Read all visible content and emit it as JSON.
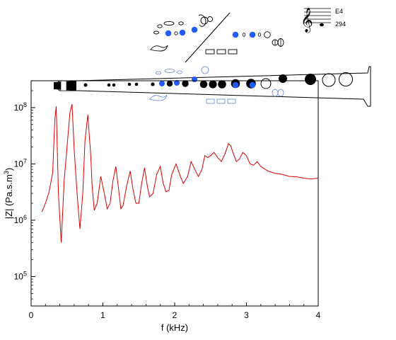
{
  "chart_data": {
    "type": "line",
    "title": "",
    "xlabel": "f (kHz)",
    "ylabel_parts": {
      "base": "|Z| (Pa.s.m",
      "sup": "3",
      "end": ")"
    },
    "xlim": [
      0,
      4
    ],
    "ylim": [
      30000.0,
      300000000.0
    ],
    "yscale": "log",
    "grid": false,
    "xticks": [
      0,
      1,
      2,
      3,
      4
    ],
    "xtick_labels": [
      "0",
      "1",
      "2",
      "3",
      "4"
    ],
    "yticks": [
      100000.0,
      1000000.0,
      10000000.0,
      100000000.0
    ],
    "ytick_labels": [
      {
        "base": "10",
        "exp": "5"
      },
      {
        "base": "10",
        "exp": "6"
      },
      {
        "base": "10",
        "exp": "7"
      },
      {
        "base": "10",
        "exp": "8"
      }
    ],
    "series": [
      {
        "color": "#dd0000",
        "x": [
          0.15,
          0.2,
          0.25,
          0.3,
          0.33,
          0.35,
          0.38,
          0.42,
          0.46,
          0.5,
          0.54,
          0.57,
          0.6,
          0.64,
          0.68,
          0.72,
          0.75,
          0.79,
          0.83,
          0.85,
          0.88,
          0.92,
          0.97,
          1.02,
          1.06,
          1.1,
          1.14,
          1.18,
          1.22,
          1.25,
          1.28,
          1.33,
          1.38,
          1.42,
          1.46,
          1.5,
          1.54,
          1.58,
          1.62,
          1.65,
          1.7,
          1.75,
          1.8,
          1.84,
          1.88,
          1.92,
          1.96,
          2.02,
          2.08,
          2.12,
          2.18,
          2.23,
          2.28,
          2.33,
          2.38,
          2.42,
          2.46,
          2.5,
          2.55,
          2.6,
          2.65,
          2.7,
          2.75,
          2.78,
          2.82,
          2.86,
          2.9,
          2.95,
          3.0,
          3.05,
          3.1,
          3.15,
          3.2,
          3.3,
          3.4,
          3.5,
          3.6,
          3.7,
          3.8,
          3.9,
          4.0
        ],
        "y": [
          1400000.0,
          2000000.0,
          3200000.0,
          7000000.0,
          60000000.0,
          105000000.0,
          3000000.0,
          400000.0,
          5000000.0,
          20000000.0,
          80000000.0,
          115000000.0,
          18000000.0,
          3000000.0,
          700000.0,
          3000000.0,
          25000000.0,
          75000000.0,
          15000000.0,
          4000000.0,
          1500000.0,
          2000000.0,
          6000000.0,
          3000000.0,
          1600000.0,
          2000000.0,
          5000000.0,
          9000000.0,
          3500000.0,
          1600000.0,
          1800000.0,
          4000000.0,
          7500000.0,
          3500000.0,
          2000000.0,
          2000000.0,
          4500000.0,
          8500000.0,
          4000000.0,
          2600000.0,
          3000000.0,
          6500000.0,
          9000000.0,
          4500000.0,
          3200000.0,
          3400000.0,
          6500000.0,
          10000000.0,
          6000000.0,
          4500000.0,
          6000000.0,
          11000000.0,
          8000000.0,
          6000000.0,
          8000000.0,
          14000000.0,
          13000000.0,
          14000000.0,
          16000000.0,
          13000000.0,
          11000000.0,
          15000000.0,
          23000000.0,
          21000000.0,
          15000000.0,
          11000000.0,
          12000000.0,
          16000000.0,
          14000000.0,
          10000000.0,
          9500000.0,
          11000000.0,
          9000000.0,
          7500000.0,
          6800000.0,
          6500000.0,
          6000000.0,
          5900000.0,
          5600000.0,
          5400000.0,
          5600000.0
        ]
      }
    ],
    "inset": {
      "note_name": "E4",
      "note_freq": "294",
      "instrument": "soprano-saxophone-fingering-diagram",
      "highlight_color": "#1f5bff",
      "outline_highlight_color": "#5e86d8",
      "closed_color": "#000000"
    }
  }
}
